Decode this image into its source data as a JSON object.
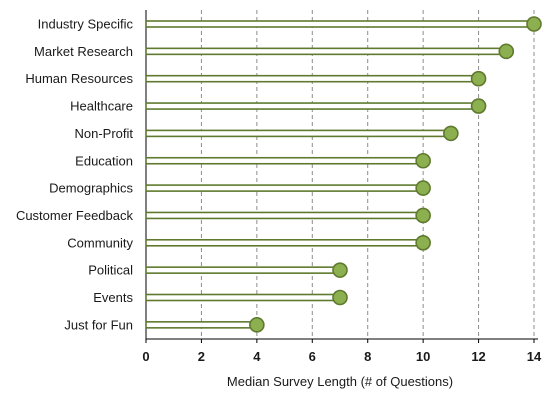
{
  "chart_data": {
    "type": "bar",
    "style": "lollipop",
    "orientation": "horizontal",
    "categories": [
      "Industry Specific",
      "Market Research",
      "Human Resources",
      "Healthcare",
      "Non-Profit",
      "Education",
      "Demographics",
      "Customer Feedback",
      "Community",
      "Political",
      "Events",
      "Just for Fun"
    ],
    "values": [
      14,
      13,
      12,
      12,
      11,
      10,
      10,
      10,
      10,
      7,
      7,
      4
    ],
    "title": "",
    "xlabel": "Median Survey Length (# of Questions)",
    "ylabel": "",
    "xlim": [
      0,
      14
    ],
    "xticks": [
      "0",
      "2",
      "4",
      "6",
      "8",
      "10",
      "12",
      "14"
    ],
    "grid": "vertical-dashed",
    "legend": "none"
  },
  "colors": {
    "stem_outline": "#5f7a2e",
    "stem_fill": "#ffffff",
    "marker_fill": "#8cb050",
    "marker_outline": "#5f7a2e",
    "grid": "#8c8c8c",
    "axis": "#000000"
  }
}
